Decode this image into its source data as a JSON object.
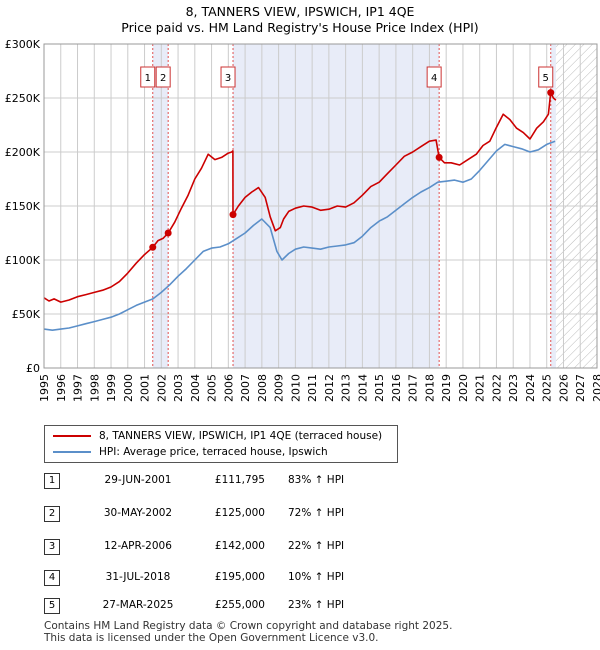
{
  "title_line1": "8, TANNERS VIEW, IPSWICH, IP1 4QE",
  "title_line2": "Price paid vs. HM Land Registry's House Price Index (HPI)",
  "colors": {
    "property": "#cc0000",
    "hpi": "#5b8fc9",
    "shade": "#e8ecf8",
    "grid": "#cccccc"
  },
  "legend": {
    "property_label": "8, TANNERS VIEW, IPSWICH, IP1 4QE (terraced house)",
    "hpi_label": "HPI: Average price, terraced house, Ipswich"
  },
  "sales": [
    {
      "num": "1",
      "date": "29-JUN-2001",
      "price": "£111,795",
      "hpi": "83% ↑ HPI"
    },
    {
      "num": "2",
      "date": "30-MAY-2002",
      "price": "£125,000",
      "hpi": "72% ↑ HPI"
    },
    {
      "num": "3",
      "date": "12-APR-2006",
      "price": "£142,000",
      "hpi": "22% ↑ HPI"
    },
    {
      "num": "4",
      "date": "31-JUL-2018",
      "price": "£195,000",
      "hpi": "10% ↑ HPI"
    },
    {
      "num": "5",
      "date": "27-MAR-2025",
      "price": "£255,000",
      "hpi": "23% ↑ HPI"
    }
  ],
  "footer_line1": "Contains HM Land Registry data © Crown copyright and database right 2025.",
  "footer_line2": "This data is licensed under the Open Government Licence v3.0.",
  "chart_data": {
    "type": "line",
    "title": "8, TANNERS VIEW, IPSWICH, IP1 4QE — Price paid vs. HM Land Registry's House Price Index (HPI)",
    "xlabel": "",
    "ylabel": "",
    "xlim": [
      1995,
      2028
    ],
    "ylim": [
      0,
      300000
    ],
    "x_ticks": [
      1995,
      1996,
      1997,
      1998,
      1999,
      2000,
      2001,
      2002,
      2003,
      2004,
      2005,
      2006,
      2007,
      2008,
      2009,
      2010,
      2011,
      2012,
      2013,
      2014,
      2015,
      2016,
      2017,
      2018,
      2019,
      2020,
      2021,
      2022,
      2023,
      2024,
      2025,
      2026,
      2027,
      2028
    ],
    "y_ticks": [
      0,
      50000,
      100000,
      150000,
      200000,
      250000,
      300000
    ],
    "y_tick_labels": [
      "£0",
      "£50K",
      "£100K",
      "£150K",
      "£200K",
      "£250K",
      "£300K"
    ],
    "shaded_periods": [
      [
        2001.49,
        2002.41
      ],
      [
        2006.28,
        2018.58
      ],
      [
        2025.24,
        2025.55
      ]
    ],
    "forecast_hatch_start": 2025.55,
    "sale_markers": [
      {
        "label": "1",
        "x": 2001.49,
        "y": 111795
      },
      {
        "label": "2",
        "x": 2002.41,
        "y": 125000
      },
      {
        "label": "3",
        "x": 2006.28,
        "y": 142000
      },
      {
        "label": "4",
        "x": 2018.58,
        "y": 195000
      },
      {
        "label": "5",
        "x": 2025.24,
        "y": 255000
      }
    ],
    "series": [
      {
        "name": "8, TANNERS VIEW, IPSWICH, IP1 4QE (terraced house)",
        "color": "#cc0000",
        "x": [
          1995.0,
          1995.3,
          1995.6,
          1996.0,
          1996.5,
          1997.0,
          1997.5,
          1998.0,
          1998.5,
          1999.0,
          1999.5,
          2000.0,
          2000.5,
          2001.0,
          2001.49,
          2001.8,
          2002.1,
          2002.41,
          2002.8,
          2003.2,
          2003.6,
          2004.0,
          2004.4,
          2004.8,
          2005.2,
          2005.6,
          2006.0,
          2006.2,
          2006.27,
          2006.28,
          2006.6,
          2007.0,
          2007.4,
          2007.8,
          2008.2,
          2008.5,
          2008.8,
          2009.1,
          2009.3,
          2009.6,
          2010.0,
          2010.5,
          2011.0,
          2011.5,
          2012.0,
          2012.5,
          2013.0,
          2013.5,
          2014.0,
          2014.5,
          2015.0,
          2015.5,
          2016.0,
          2016.5,
          2017.0,
          2017.5,
          2018.0,
          2018.4,
          2018.58,
          2018.9,
          2019.3,
          2019.8,
          2020.3,
          2020.8,
          2021.2,
          2021.6,
          2022.0,
          2022.4,
          2022.8,
          2023.2,
          2023.6,
          2024.0,
          2024.4,
          2024.8,
          2025.1,
          2025.24,
          2025.4,
          2025.55
        ],
        "y": [
          65000,
          62000,
          64000,
          61000,
          63000,
          66000,
          68000,
          70000,
          72000,
          75000,
          80000,
          88000,
          97000,
          105000,
          111795,
          118000,
          120000,
          125000,
          135000,
          148000,
          160000,
          175000,
          185000,
          198000,
          193000,
          195000,
          199000,
          200000,
          201000,
          142000,
          150000,
          158000,
          163000,
          167000,
          158000,
          140000,
          127000,
          130000,
          138000,
          145000,
          148000,
          150000,
          149000,
          146000,
          147000,
          150000,
          149000,
          153000,
          160000,
          168000,
          172000,
          180000,
          188000,
          196000,
          200000,
          205000,
          210000,
          211000,
          195000,
          190000,
          190000,
          188000,
          193000,
          198000,
          206000,
          210000,
          223000,
          235000,
          230000,
          222000,
          218000,
          212000,
          222000,
          228000,
          235000,
          255000,
          250000,
          248000
        ]
      },
      {
        "name": "HPI: Average price, terraced house, Ipswich",
        "color": "#5b8fc9",
        "x": [
          1995.0,
          1995.5,
          1996.0,
          1996.5,
          1997.0,
          1997.5,
          1998.0,
          1998.5,
          1999.0,
          1999.5,
          2000.0,
          2000.5,
          2001.0,
          2001.5,
          2002.0,
          2002.5,
          2003.0,
          2003.5,
          2004.0,
          2004.5,
          2005.0,
          2005.5,
          2006.0,
          2006.5,
          2007.0,
          2007.5,
          2008.0,
          2008.5,
          2008.9,
          2009.2,
          2009.6,
          2010.0,
          2010.5,
          2011.0,
          2011.5,
          2012.0,
          2012.5,
          2013.0,
          2013.5,
          2014.0,
          2014.5,
          2015.0,
          2015.5,
          2016.0,
          2016.5,
          2017.0,
          2017.5,
          2018.0,
          2018.5,
          2019.0,
          2019.5,
          2020.0,
          2020.5,
          2021.0,
          2021.5,
          2022.0,
          2022.5,
          2023.0,
          2023.5,
          2024.0,
          2024.5,
          2025.0,
          2025.5
        ],
        "y": [
          36000,
          35000,
          36000,
          37000,
          39000,
          41000,
          43000,
          45000,
          47000,
          50000,
          54000,
          58000,
          61000,
          64000,
          70000,
          77000,
          85000,
          92000,
          100000,
          108000,
          111000,
          112000,
          115000,
          120000,
          125000,
          132000,
          138000,
          130000,
          108000,
          100000,
          106000,
          110000,
          112000,
          111000,
          110000,
          112000,
          113000,
          114000,
          116000,
          122000,
          130000,
          136000,
          140000,
          146000,
          152000,
          158000,
          163000,
          167000,
          172000,
          173000,
          174000,
          172000,
          175000,
          183000,
          192000,
          201000,
          207000,
          205000,
          203000,
          200000,
          202000,
          207000,
          210000
        ]
      }
    ]
  }
}
